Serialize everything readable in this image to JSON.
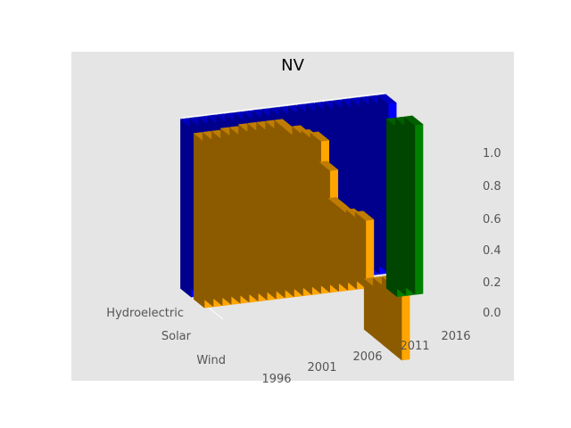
{
  "chart_data": {
    "type": "bar3d",
    "title": "NV",
    "x_tick_labels": [
      "1996",
      "2001",
      "2006",
      "2011",
      "2016"
    ],
    "y_categories": [
      "Hydroelectric",
      "Solar",
      "Wind"
    ],
    "z_tick_labels": [
      "0.0",
      "0.2",
      "0.4",
      "0.6",
      "0.8",
      "1.0"
    ],
    "zlim": [
      0.0,
      1.0
    ],
    "colors": {
      "Hydroelectric": "#0000ff",
      "Solar": "#ffa500",
      "Wind": "#008000"
    },
    "series": [
      {
        "name": "Hydroelectric",
        "years": [
          1996,
          1997,
          1998,
          1999,
          2000,
          2001,
          2002,
          2003,
          2004,
          2005,
          2006,
          2007,
          2008,
          2009,
          2010,
          2011,
          2012,
          2013,
          2014,
          2015,
          2016,
          2017,
          2018
        ],
        "values": [
          1.0,
          1.0,
          1.0,
          1.0,
          1.0,
          1.0,
          1.0,
          1.0,
          1.0,
          1.0,
          1.0,
          1.0,
          1.0,
          1.0,
          1.0,
          1.0,
          1.0,
          1.0,
          1.0,
          1.0,
          1.0,
          1.0,
          1.0
        ]
      },
      {
        "name": "Solar",
        "years": [
          1996,
          1997,
          1998,
          1999,
          2000,
          2001,
          2002,
          2003,
          2004,
          2005,
          2006,
          2007,
          2008,
          2009,
          2010,
          2011,
          2012,
          2013,
          2014,
          2015,
          2016,
          2017,
          2018
        ],
        "values": [
          0.98,
          0.98,
          0.98,
          0.99,
          0.99,
          1.0,
          1.0,
          1.0,
          1.0,
          1.0,
          0.95,
          0.95,
          0.92,
          0.9,
          0.72,
          0.5,
          0.45,
          0.42,
          0.4,
          -0.3,
          -0.35,
          -0.4,
          -0.45
        ]
      },
      {
        "name": "Wind",
        "years": [
          1996,
          1997,
          1998,
          1999,
          2000,
          2001,
          2002,
          2003,
          2004,
          2005,
          2006,
          2007,
          2008,
          2009,
          2010,
          2011,
          2012,
          2013,
          2014,
          2015,
          2016,
          2017,
          2018
        ],
        "values": [
          0,
          0,
          0,
          0,
          0,
          0,
          0,
          0,
          0,
          0,
          0,
          0,
          0,
          0,
          0,
          0,
          0,
          0,
          0,
          0,
          1.0,
          1.0,
          1.0
        ]
      }
    ]
  }
}
